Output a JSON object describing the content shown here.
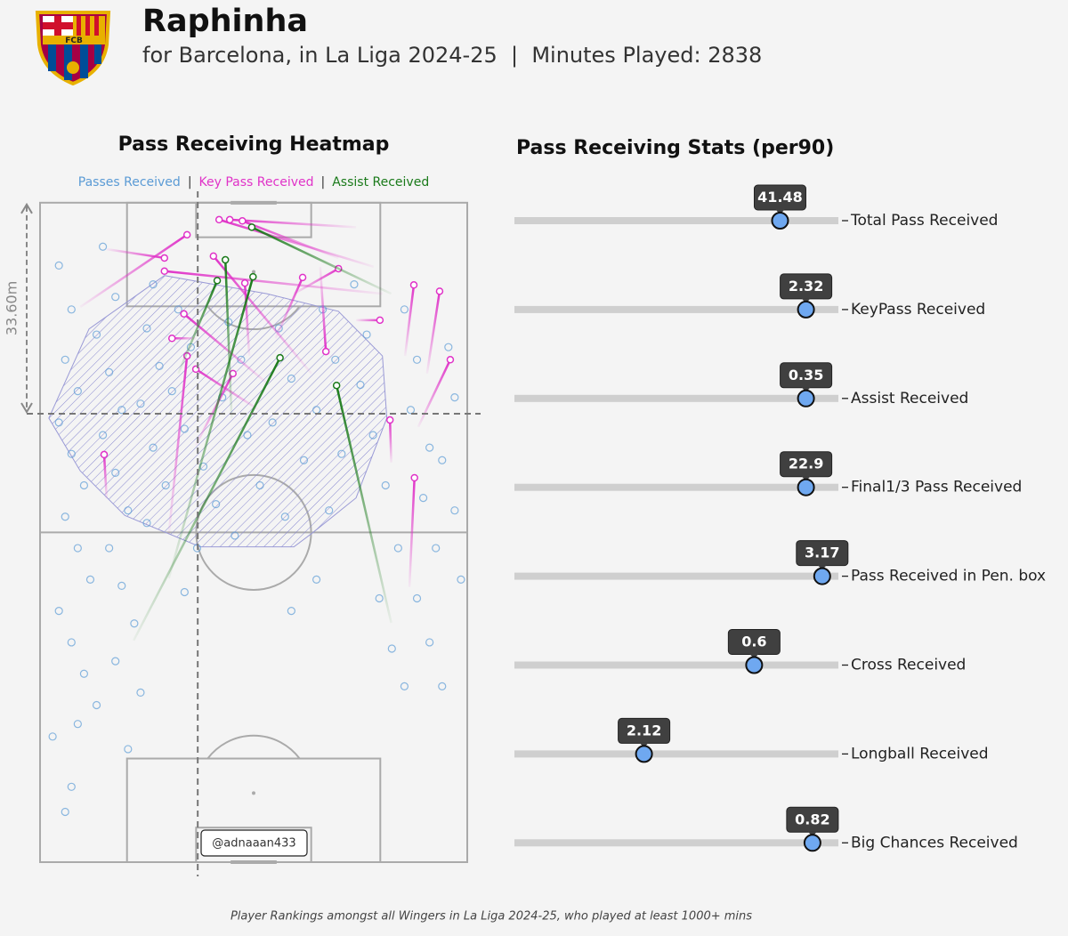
{
  "header": {
    "title": "Raphinha",
    "subtitle": "for Barcelona, in La Liga 2024-25  |  Minutes Played: 2838",
    "logo_text": "FCB"
  },
  "footer": "Player Rankings amongst all Wingers in La Liga 2024-25, who played at least 1000+ mins",
  "chart_data": [
    {
      "type": "pitch",
      "title": "Pass Receiving Heatmap",
      "legend": [
        {
          "name": "Passes Received",
          "color": "#5b9bd5"
        },
        {
          "name": "Key Pass Received",
          "color": "#e033c8"
        },
        {
          "name": "Assist Received",
          "color": "#1a7a1a"
        }
      ],
      "legend_separator": "|",
      "xlim": [
        0,
        68
      ],
      "ylim": [
        0,
        105
      ],
      "avg_distance": 33.6,
      "avg_distance_label": "33.60m",
      "avg_x": 25.1,
      "watermark": "@adnaaan433",
      "passes": [
        [
          3,
          95
        ],
        [
          5,
          88
        ],
        [
          4,
          80
        ],
        [
          6,
          75
        ],
        [
          3,
          70
        ],
        [
          5,
          65
        ],
        [
          7,
          60
        ],
        [
          4,
          55
        ],
        [
          6,
          50
        ],
        [
          8,
          45
        ],
        [
          3,
          40
        ],
        [
          5,
          35
        ],
        [
          7,
          30
        ],
        [
          9,
          25
        ],
        [
          2,
          20
        ],
        [
          10,
          98
        ],
        [
          12,
          90
        ],
        [
          9,
          84
        ],
        [
          11,
          78
        ],
        [
          13,
          72
        ],
        [
          10,
          68
        ],
        [
          12,
          62
        ],
        [
          14,
          56
        ],
        [
          11,
          50
        ],
        [
          13,
          44
        ],
        [
          15,
          38
        ],
        [
          12,
          32
        ],
        [
          16,
          27
        ],
        [
          18,
          92
        ],
        [
          17,
          85
        ],
        [
          19,
          79
        ],
        [
          16,
          73
        ],
        [
          18,
          66
        ],
        [
          20,
          60
        ],
        [
          17,
          54
        ],
        [
          22,
          88
        ],
        [
          24,
          82
        ],
        [
          21,
          75
        ],
        [
          23,
          69
        ],
        [
          26,
          63
        ],
        [
          28,
          57
        ],
        [
          25,
          50
        ],
        [
          30,
          86
        ],
        [
          32,
          80
        ],
        [
          29,
          74
        ],
        [
          33,
          68
        ],
        [
          35,
          60
        ],
        [
          31,
          52
        ],
        [
          38,
          85
        ],
        [
          40,
          77
        ],
        [
          37,
          70
        ],
        [
          42,
          64
        ],
        [
          39,
          55
        ],
        [
          45,
          88
        ],
        [
          47,
          80
        ],
        [
          44,
          72
        ],
        [
          48,
          65
        ],
        [
          46,
          56
        ],
        [
          50,
          92
        ],
        [
          52,
          84
        ],
        [
          51,
          76
        ],
        [
          53,
          68
        ],
        [
          55,
          60
        ],
        [
          57,
          50
        ],
        [
          54,
          42
        ],
        [
          56,
          34
        ],
        [
          58,
          88
        ],
        [
          60,
          80
        ],
        [
          59,
          72
        ],
        [
          62,
          66
        ],
        [
          61,
          58
        ],
        [
          63,
          50
        ],
        [
          60,
          42
        ],
        [
          62,
          35
        ],
        [
          64,
          28
        ],
        [
          65,
          82
        ],
        [
          66,
          74
        ],
        [
          64,
          64
        ],
        [
          66,
          56
        ],
        [
          67,
          45
        ],
        [
          5,
          12
        ],
        [
          4,
          8
        ],
        [
          58,
          28
        ],
        [
          40,
          40
        ],
        [
          44,
          45
        ],
        [
          23,
          43
        ],
        [
          6,
          22
        ],
        [
          14,
          18
        ]
      ],
      "key_passes": [
        [
          10.6,
          57.9,
          10.2,
          64.9
        ],
        [
          58.8,
          43.8,
          59.6,
          61.2
        ],
        [
          6.4,
          88.4,
          23.4,
          99.9
        ],
        [
          53.1,
          94.8,
          28.5,
          102.3
        ],
        [
          50.3,
          101.1,
          30.2,
          102.3
        ],
        [
          47.5,
          96.2,
          32.2,
          102.1
        ],
        [
          54.5,
          90.5,
          19.8,
          94.1
        ],
        [
          43.2,
          77.8,
          27.6,
          96.5
        ],
        [
          61.6,
          77.8,
          63.6,
          90.9
        ],
        [
          58.1,
          80.6,
          59.5,
          91.9
        ],
        [
          40.4,
          90.5,
          47.5,
          94.5
        ],
        [
          24.8,
          66.4,
          30.7,
          77.8
        ],
        [
          36.1,
          76.3,
          22.9,
          87.3
        ],
        [
          20.5,
          52.3,
          23.4,
          80.6
        ],
        [
          34.7,
          72.1,
          24.8,
          78.5
        ],
        [
          60.2,
          69.3,
          65.3,
          80.0
        ],
        [
          55.9,
          63.6,
          55.7,
          70.4
        ],
        [
          37.5,
          83.4,
          41.8,
          93.1
        ],
        [
          10.6,
          97.6,
          19.8,
          96.2
        ],
        [
          50.3,
          86.3,
          54.1,
          86.3
        ],
        [
          44.6,
          94.8,
          45.5,
          81.3
        ],
        [
          33.3,
          80.6,
          32.6,
          92.2
        ],
        [
          24.8,
          83.4,
          21.0,
          83.4
        ]
      ],
      "assists": [
        [
          14.9,
          35.3,
          38.2,
          80.3
        ],
        [
          20.5,
          45.2,
          33.9,
          93.2
        ],
        [
          30.5,
          70.7,
          29.5,
          95.9
        ],
        [
          55.9,
          90.5,
          33.7,
          101.1
        ],
        [
          55.9,
          38.1,
          47.2,
          75.9
        ],
        [
          22.0,
          77.8,
          28.2,
          92.6
        ]
      ],
      "hull": [
        [
          1.4,
          70.7
        ],
        [
          7.8,
          84.9
        ],
        [
          19.8,
          93.4
        ],
        [
          36.1,
          90.5
        ],
        [
          47.5,
          87.7
        ],
        [
          54.5,
          80.6
        ],
        [
          55.2,
          70.7
        ],
        [
          50.3,
          58.0
        ],
        [
          43.2,
          52.3
        ],
        [
          40.4,
          50.2
        ],
        [
          25.5,
          50.2
        ],
        [
          13.5,
          55.2
        ],
        [
          6.4,
          62.3
        ]
      ]
    },
    {
      "type": "percentile_bar",
      "title": "Pass Receiving Stats (per90)",
      "xlim": [
        0,
        100
      ],
      "marker_color": "#6fa8f0",
      "categories": [
        "Total Pass Received",
        "KeyPass Received",
        "Assist Received",
        "Final1/3 Pass Received",
        "Pass Received in Pen. box",
        "Cross Received",
        "Longball Received",
        "Big Chances Received"
      ],
      "values": [
        41.48,
        2.32,
        0.35,
        22.9,
        3.17,
        0.6,
        2.12,
        0.82
      ],
      "percentiles": [
        82,
        90,
        90,
        90,
        95,
        74,
        40,
        92
      ]
    }
  ]
}
